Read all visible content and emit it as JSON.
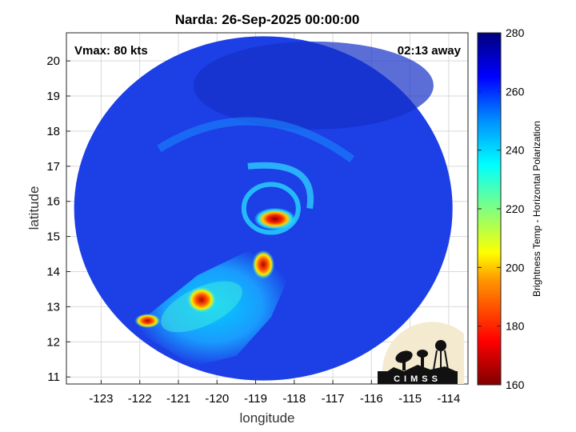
{
  "chart_data": {
    "type": "heatmap",
    "title": "Narda: 26-Sep-2025 00:00:00",
    "xlabel": "longitude",
    "ylabel": "latitude",
    "xlim": [
      -123.9,
      -113.5
    ],
    "ylim": [
      10.8,
      20.8
    ],
    "xticks": [
      -123,
      -122,
      -121,
      -120,
      -119,
      -118,
      -117,
      -116,
      -115,
      -114
    ],
    "yticks": [
      11,
      12,
      13,
      14,
      15,
      16,
      17,
      18,
      19,
      20
    ],
    "grid": true,
    "annotations": {
      "vmax": "Vmax: 80 kts",
      "time_offset": "02:13 away"
    },
    "colorbar": {
      "label": "Brightness Temp - Horizontal Polarization",
      "range": [
        160,
        280
      ],
      "ticks": [
        160,
        180,
        200,
        220,
        240,
        260,
        280
      ],
      "colormap": "jet"
    },
    "swath": {
      "center": [
        -118.8,
        15.8
      ],
      "radius_deg": 4.9
    },
    "features": [
      {
        "name": "eyewall",
        "lon": -118.5,
        "lat": 15.5,
        "min_tb": 165
      },
      {
        "name": "rainband",
        "lon": -120.4,
        "lat": 13.2,
        "min_tb": 170
      },
      {
        "name": "convection",
        "lon": -118.8,
        "lat": 14.2,
        "min_tb": 172
      },
      {
        "name": "outer-band",
        "lon": -121.8,
        "lat": 12.6,
        "min_tb": 185
      }
    ],
    "logo": "CIMSS"
  },
  "colors": {
    "background_tb": "#1c3fe6",
    "grid": "#d9d9d9",
    "axes": "#262626"
  }
}
